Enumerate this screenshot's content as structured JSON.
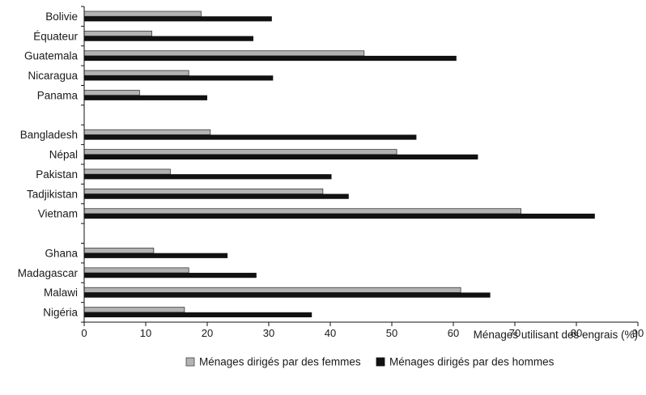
{
  "chart_data": {
    "type": "bar",
    "orientation": "horizontal",
    "categories": [
      "Bolivie",
      "Équateur",
      "Guatemala",
      "Nicaragua",
      "Panama",
      "Bangladesh",
      "Népal",
      "Pakistan",
      "Tadjikistan",
      "Vietnam",
      "Ghana",
      "Madagascar",
      "Malawi",
      "Nigéria"
    ],
    "groups": [
      [
        "Bolivie",
        "Équateur",
        "Guatemala",
        "Nicaragua",
        "Panama"
      ],
      [
        "Bangladesh",
        "Népal",
        "Pakistan",
        "Tadjikistan",
        "Vietnam"
      ],
      [
        "Ghana",
        "Madagascar",
        "Malawi",
        "Nigéria"
      ]
    ],
    "series": [
      {
        "name": "Ménages dirigés par des femmes",
        "color": "#b3b3b3",
        "values": [
          19,
          11,
          45.5,
          17,
          9,
          20.5,
          50.8,
          14,
          38.8,
          71,
          11.3,
          17,
          61.2,
          16.3
        ]
      },
      {
        "name": "Ménages dirigés par des hommes",
        "color": "#111111",
        "values": [
          30.5,
          27.5,
          60.5,
          30.7,
          20,
          54,
          64,
          40.2,
          43,
          83,
          23.3,
          28,
          66,
          37
        ]
      }
    ],
    "title": "",
    "xlabel": "Ménages utilisant des engrais (%)",
    "ylabel": "",
    "xlim": [
      0,
      90
    ],
    "xticks": [
      0,
      10,
      20,
      30,
      40,
      50,
      60,
      70,
      80,
      90
    ],
    "grid": false,
    "legend_position": "bottom"
  }
}
